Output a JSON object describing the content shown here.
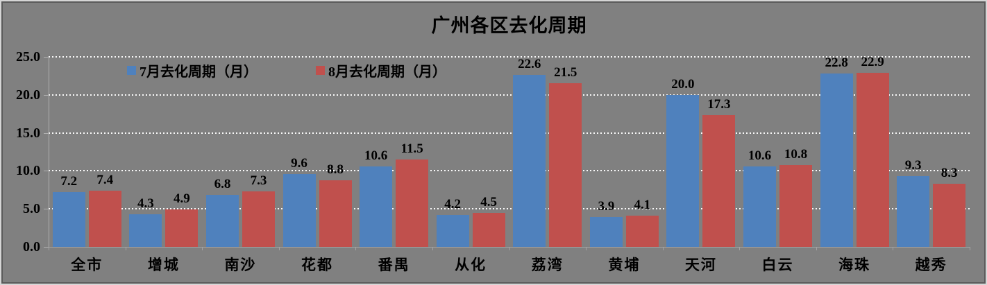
{
  "title": "广州各区去化周期",
  "legend": {
    "items": [
      {
        "label": "7月去化周期（月）",
        "color": "#4F81BD"
      },
      {
        "label": "8月去化周期（月）",
        "color": "#C0504D"
      }
    ]
  },
  "chart_data": {
    "type": "bar",
    "title": "广州各区去化周期",
    "categories": [
      "全市",
      "增城",
      "南沙",
      "花都",
      "番禺",
      "从化",
      "荔湾",
      "黄埔",
      "天河",
      "白云",
      "海珠",
      "越秀"
    ],
    "series": [
      {
        "name": "7月去化周期（月）",
        "color": "#4F81BD",
        "values": [
          7.2,
          4.3,
          6.8,
          9.6,
          10.6,
          4.2,
          22.6,
          3.9,
          20.0,
          10.6,
          22.8,
          9.3
        ]
      },
      {
        "name": "8月去化周期（月）",
        "color": "#C0504D",
        "values": [
          7.4,
          4.9,
          7.3,
          8.8,
          11.5,
          4.5,
          21.5,
          4.1,
          17.3,
          10.8,
          22.9,
          8.3
        ]
      }
    ],
    "xlabel": "",
    "ylabel": "",
    "ylim": [
      0,
      25
    ],
    "ytick_step": 5,
    "ytick_labels": [
      "0.0",
      "5.0",
      "10.0",
      "15.0",
      "20.0",
      "25.0"
    ],
    "data_label_decimals": 1,
    "grid": true,
    "gridline_style": "white-dotted",
    "legend_position": "inside-top-left",
    "background": "#808080",
    "bar_colors": {
      "series1": "#4F81BD",
      "series2": "#C0504D"
    }
  }
}
